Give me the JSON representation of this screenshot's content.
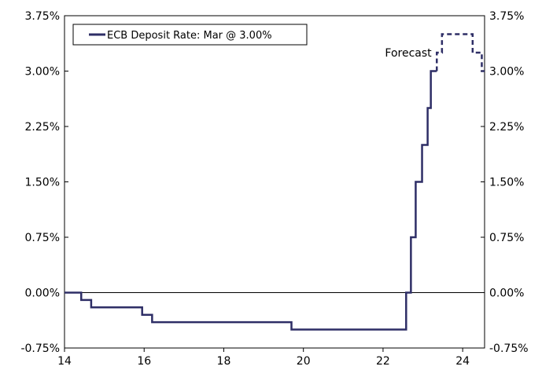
{
  "chart_data": {
    "type": "line",
    "title": "",
    "xlabel": "",
    "ylabel": "",
    "xlim": [
      14,
      24.55
    ],
    "ylim": [
      -0.75,
      3.75
    ],
    "x_ticks": [
      "14",
      "16",
      "18",
      "20",
      "22",
      "24"
    ],
    "y_ticks": [
      "-0.75%",
      "0.00%",
      "0.75%",
      "1.50%",
      "2.25%",
      "3.00%",
      "3.75%"
    ],
    "grid": false,
    "legend_position": "top-left",
    "annotation": "Forecast",
    "series": [
      {
        "name": "ECB Deposit Rate: Mar @ 3.00%",
        "color": "#2e2e66",
        "style": "solid-step",
        "points": [
          [
            14.0,
            0.0
          ],
          [
            14.42,
            0.0
          ],
          [
            14.42,
            -0.1
          ],
          [
            14.67,
            -0.1
          ],
          [
            14.67,
            -0.2
          ],
          [
            15.95,
            -0.2
          ],
          [
            15.95,
            -0.3
          ],
          [
            16.2,
            -0.3
          ],
          [
            16.2,
            -0.4
          ],
          [
            19.7,
            -0.4
          ],
          [
            19.7,
            -0.5
          ],
          [
            22.58,
            -0.5
          ],
          [
            22.58,
            0.0
          ],
          [
            22.7,
            0.0
          ],
          [
            22.7,
            0.75
          ],
          [
            22.82,
            0.75
          ],
          [
            22.82,
            1.5
          ],
          [
            22.98,
            1.5
          ],
          [
            22.98,
            2.0
          ],
          [
            23.12,
            2.0
          ],
          [
            23.12,
            2.5
          ],
          [
            23.2,
            2.5
          ],
          [
            23.2,
            3.0
          ],
          [
            23.35,
            3.0
          ]
        ]
      },
      {
        "name": "Forecast",
        "color": "#2e2e66",
        "style": "dashed-step",
        "points": [
          [
            23.35,
            3.0
          ],
          [
            23.35,
            3.25
          ],
          [
            23.48,
            3.25
          ],
          [
            23.48,
            3.5
          ],
          [
            24.25,
            3.5
          ],
          [
            24.25,
            3.25
          ],
          [
            24.48,
            3.25
          ],
          [
            24.48,
            3.0
          ],
          [
            24.55,
            3.0
          ]
        ]
      }
    ]
  }
}
